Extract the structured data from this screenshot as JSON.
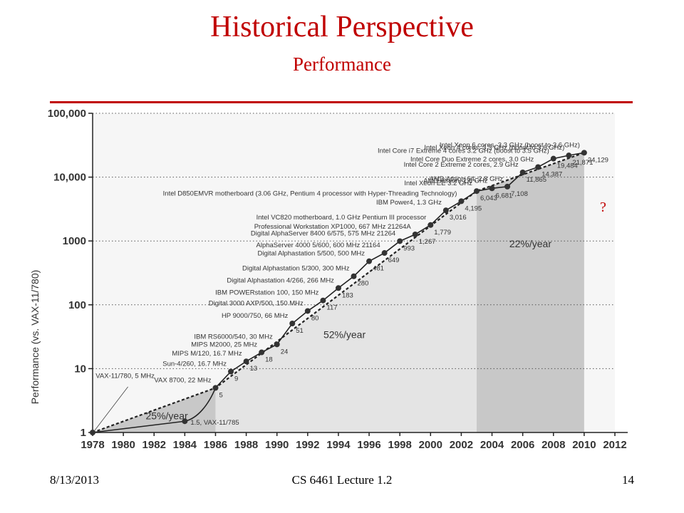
{
  "slide": {
    "title": "Historical Perspective",
    "subtitle": "Performance",
    "question_mark": "?",
    "footer": {
      "date": "8/13/2013",
      "course": "CS 6461 Lecture 1.2",
      "page": "14"
    }
  },
  "chart_data": {
    "type": "line",
    "ylabel": "Performance (vs. VAX-11/780)",
    "xlabel": "",
    "yscale": "log",
    "ylim": [
      1,
      100000
    ],
    "xlim": [
      1978,
      2012
    ],
    "x_ticks": [
      "1978",
      "1980",
      "1982",
      "1984",
      "1986",
      "1988",
      "1990",
      "1992",
      "1994",
      "1996",
      "1998",
      "2000",
      "2002",
      "2004",
      "2006",
      "2008",
      "2010",
      "2012"
    ],
    "y_ticks": [
      {
        "value": 1,
        "label": "1"
      },
      {
        "value": 10,
        "label": "10"
      },
      {
        "value": 100,
        "label": "100"
      },
      {
        "value": 1000,
        "label": "1000"
      },
      {
        "value": 10000,
        "label": "10,000"
      },
      {
        "value": 100000,
        "label": "100,000"
      }
    ],
    "grid": true,
    "regions": [
      {
        "label": "25%/year",
        "x": [
          1978,
          1986
        ],
        "color": "#c8c8c8"
      },
      {
        "label": "52%/year",
        "x": [
          1986,
          2003
        ],
        "color": "#e4e4e4"
      },
      {
        "label": "22%/year",
        "x": [
          2003,
          2010
        ],
        "color": "#c8c8c8"
      }
    ],
    "trend_points": [
      {
        "x": 1978,
        "y": 1
      },
      {
        "x": 1986,
        "y": 5
      },
      {
        "x": 2003,
        "y": 6043
      },
      {
        "x": 2010,
        "y": 24129
      }
    ],
    "points": [
      {
        "year": 1978,
        "value": 1,
        "machine": "VAX-11/780, 5 MHz",
        "value_label": ""
      },
      {
        "year": 1984,
        "value": 1.5,
        "machine": "",
        "value_label": "1.5, VAX-11/785"
      },
      {
        "year": 1986,
        "value": 5,
        "machine": "VAX 8700, 22 MHz",
        "value_label": "5"
      },
      {
        "year": 1987,
        "value": 9,
        "machine": "Sun-4/260, 16.7 MHz",
        "value_label": "9"
      },
      {
        "year": 1988,
        "value": 13,
        "machine": "MIPS M/120, 16.7 MHz",
        "value_label": "13"
      },
      {
        "year": 1989,
        "value": 18,
        "machine": "MIPS M2000, 25 MHz",
        "value_label": "18"
      },
      {
        "year": 1990,
        "value": 24,
        "machine": "IBM RS6000/540, 30 MHz",
        "value_label": "24"
      },
      {
        "year": 1991,
        "value": 51,
        "machine": "HP 9000/750, 66 MHz",
        "value_label": "51"
      },
      {
        "year": 1992,
        "value": 80,
        "machine": "Digital 3000 AXP/500, 150 MHz",
        "value_label": "80"
      },
      {
        "year": 1993,
        "value": 117,
        "machine": "IBM POWERstation 100, 150 MHz",
        "value_label": "117"
      },
      {
        "year": 1994,
        "value": 183,
        "machine": "Digital Alphastation 4/266, 266 MHz",
        "value_label": "183"
      },
      {
        "year": 1995,
        "value": 280,
        "machine": "Digital Alphastation 5/300, 300 MHz",
        "value_label": "280"
      },
      {
        "year": 1996,
        "value": 481,
        "machine": "Digital Alphastation 5/500, 500 MHz",
        "value_label": "481"
      },
      {
        "year": 1997,
        "value": 649,
        "machine": "AlphaServer 4000 5/600, 600 MHz 21164",
        "value_label": "649"
      },
      {
        "year": 1998,
        "value": 993,
        "machine": "Digital AlphaServer 8400 6/575, 575 MHz 21264",
        "value_label": "993"
      },
      {
        "year": 1999,
        "value": 1267,
        "machine": "Professional Workstation XP1000, 667 MHz 21264A",
        "value_label": "1,267"
      },
      {
        "year": 2000,
        "value": 1779,
        "machine": "Intel VC820 motherboard, 1.0 GHz Pentium III processor",
        "value_label": "1,779"
      },
      {
        "year": 2001,
        "value": 3016,
        "machine": "IBM Power4, 1.3 GHz",
        "value_label": "3,016"
      },
      {
        "year": 2002,
        "value": 4195,
        "machine": "Intel D850EMVR motherboard (3.06 GHz, Pentium 4 processor with Hyper-Threading Technology)",
        "value_label": "4,195"
      },
      {
        "year": 2003,
        "value": 6043,
        "machine": "Intel Xeon EE 3.2 GHz",
        "value_label": "6,043"
      },
      {
        "year": 2004,
        "value": 6681,
        "machine": "AMD Athlon, 2.6 GHz",
        "value_label": "6,681"
      },
      {
        "year": 2005,
        "value": 7108,
        "machine": "AMD Athlon 64, 2.8 GHz",
        "value_label": "7,108"
      },
      {
        "year": 2006,
        "value": 11865,
        "machine": "Intel Core 2 Extreme 2 cores, 2.9 GHz",
        "value_label": "11,865"
      },
      {
        "year": 2007,
        "value": 14387,
        "machine": "Intel Core Duo Extreme 2 cores, 3.0 GHz",
        "value_label": "14,387"
      },
      {
        "year": 2008,
        "value": 19484,
        "machine": "Intel Core i7 Extreme 4 cores 3.2 GHz (boost to 3.5 GHz)",
        "value_label": "19,484"
      },
      {
        "year": 2009,
        "value": 21871,
        "machine": "Intel Xeon 4 cores, 3.3 GHz (boost to 3.6 GHz)",
        "value_label": "21,871"
      },
      {
        "year": 2010,
        "value": 24129,
        "machine": "Intel Xeon 6 cores, 3.3 GHz (boost to 3.6 GHz)",
        "value_label": "24,129"
      }
    ],
    "colors": {
      "line": "#222222",
      "point": "#333333",
      "grid": "#555555",
      "label": "#333333",
      "accent": "#c00000"
    }
  }
}
